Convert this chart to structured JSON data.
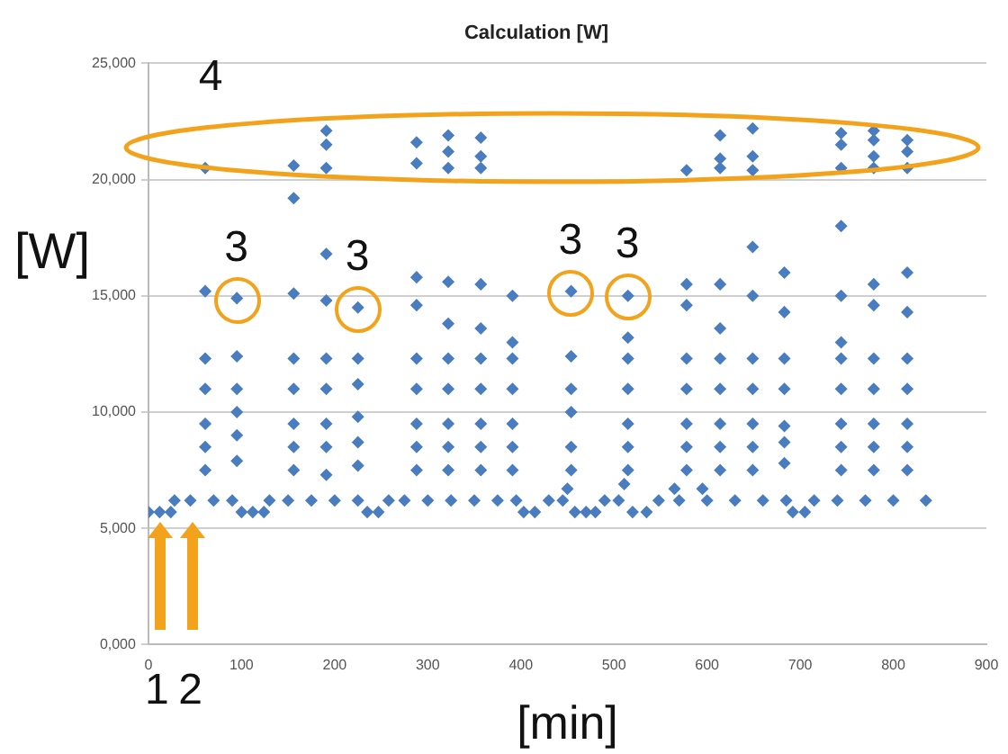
{
  "chart_data": {
    "type": "scatter",
    "title": "Calculation [W]",
    "xlabel": "[min]",
    "ylabel": "[W]",
    "xlim": [
      0,
      900
    ],
    "xticks": [
      0,
      100,
      200,
      300,
      400,
      500,
      600,
      700,
      800,
      900
    ],
    "ylim": [
      0,
      25000
    ],
    "yticks": [
      {
        "value": 0,
        "label": "0,000"
      },
      {
        "value": 5000,
        "label": "5,000"
      },
      {
        "value": 10000,
        "label": "10,000"
      },
      {
        "value": 15000,
        "label": "15,000"
      },
      {
        "value": 20000,
        "label": "20,000"
      },
      {
        "value": 25000,
        "label": "25,000"
      }
    ],
    "grid": "y",
    "legend": false,
    "marker": "diamond",
    "series": [
      {
        "color": "#4a7dbf",
        "x": [
          0,
          12,
          24,
          28,
          45,
          70,
          90,
          100,
          112,
          124,
          130,
          150,
          175,
          200,
          225,
          235,
          247,
          258,
          275,
          300,
          325,
          350,
          375,
          395,
          403,
          415,
          430,
          445,
          450,
          458,
          470,
          480,
          490,
          505,
          511,
          520,
          535,
          548,
          565,
          570,
          595,
          600,
          630,
          660,
          685,
          692,
          705,
          715,
          740,
          770,
          800,
          835,
          61,
          61,
          61,
          61,
          61,
          95,
          95,
          95,
          95,
          95,
          156,
          156,
          156,
          156,
          156,
          191,
          191,
          191,
          191,
          191,
          225,
          225,
          225,
          225,
          225,
          288,
          288,
          288,
          288,
          288,
          322,
          322,
          322,
          322,
          322,
          357,
          357,
          357,
          357,
          357,
          391,
          391,
          391,
          391,
          391,
          454,
          454,
          454,
          454,
          454,
          515,
          515,
          515,
          515,
          515,
          578,
          578,
          578,
          578,
          578,
          614,
          614,
          614,
          614,
          614,
          649,
          649,
          649,
          649,
          649,
          683,
          683,
          683,
          683,
          683,
          744,
          744,
          744,
          744,
          744,
          779,
          779,
          779,
          779,
          779,
          815,
          815,
          815,
          815,
          815,
          61,
          61,
          95,
          156,
          156,
          156,
          191,
          191,
          191,
          191,
          191,
          225,
          288,
          288,
          288,
          288,
          322,
          322,
          322,
          322,
          322,
          357,
          357,
          357,
          357,
          357,
          391,
          391,
          454,
          515,
          515,
          578,
          578,
          578,
          614,
          614,
          614,
          614,
          614,
          649,
          649,
          649,
          649,
          649,
          683,
          683,
          744,
          744,
          744,
          744,
          744,
          744,
          779,
          779,
          779,
          779,
          779,
          779,
          815,
          815,
          815,
          815,
          815
        ],
        "values": [
          5700,
          5700,
          5700,
          6200,
          6200,
          6200,
          6200,
          5700,
          5700,
          5700,
          6200,
          6200,
          6200,
          6200,
          6200,
          5700,
          5700,
          6200,
          6200,
          6200,
          6200,
          6200,
          6200,
          6200,
          5700,
          5700,
          6200,
          6200,
          6700,
          5700,
          5700,
          5700,
          6200,
          6200,
          6900,
          5700,
          5700,
          6200,
          6700,
          6200,
          6700,
          6200,
          6200,
          6200,
          6200,
          5700,
          5700,
          6200,
          6200,
          6200,
          6200,
          6200,
          7500,
          8500,
          9500,
          11000,
          12300,
          7900,
          9000,
          10000,
          11000,
          12400,
          7500,
          8500,
          9500,
          11000,
          12300,
          7300,
          8500,
          9500,
          11000,
          12300,
          7700,
          8700,
          9800,
          11200,
          12300,
          7500,
          8500,
          9500,
          11000,
          12300,
          7500,
          8500,
          9500,
          11000,
          12300,
          7500,
          8500,
          9500,
          11000,
          12300,
          7500,
          8500,
          9500,
          11000,
          12300,
          7500,
          8500,
          10000,
          11000,
          12400,
          7500,
          8500,
          9500,
          11000,
          12300,
          7500,
          8500,
          9500,
          11000,
          12300,
          7500,
          8500,
          9500,
          11000,
          12300,
          7500,
          8500,
          9500,
          11000,
          12300,
          7800,
          8700,
          9400,
          11000,
          12300,
          7500,
          8500,
          9500,
          11000,
          12300,
          7500,
          8500,
          9500,
          11000,
          12300,
          7500,
          8500,
          9500,
          11000,
          12300,
          15200,
          20500,
          14900,
          15100,
          19200,
          20600,
          14800,
          16800,
          20500,
          21500,
          22100,
          14500,
          14600,
          15800,
          20700,
          21600,
          13800,
          15600,
          20500,
          21200,
          21900,
          13600,
          15500,
          20500,
          21000,
          21800,
          13000,
          15000,
          15200,
          13200,
          15000,
          14600,
          15500,
          20400,
          13600,
          15500,
          20500,
          20900,
          21900,
          15000,
          17100,
          20400,
          21000,
          22200,
          14300,
          16000,
          13000,
          15000,
          18000,
          20500,
          21500,
          22000,
          14600,
          15500,
          20500,
          21000,
          21700,
          22100,
          14300,
          16000,
          20500,
          21200,
          21700
        ]
      }
    ],
    "annotations": [
      "1",
      "2",
      {
        "text": "3",
        "x": 95,
        "y": 14900
      },
      {
        "text": "3",
        "x": 225,
        "y": 14500
      },
      {
        "text": "3",
        "x": 454,
        "y": 15200
      },
      {
        "text": "3",
        "x": 515,
        "y": 15000
      },
      "4"
    ]
  }
}
